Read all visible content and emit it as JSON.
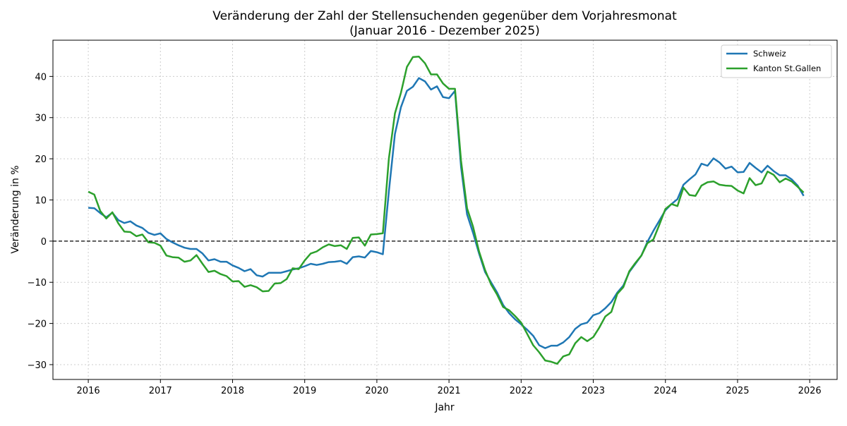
{
  "chart_data": {
    "type": "line",
    "title": "Veränderung der Zahl der Stellensuchenden gegenüber dem Vorjahresmonat",
    "subtitle": "(Januar 2016 - Dezember 2025)",
    "xlabel": "Jahr",
    "ylabel": "Veränderung in %",
    "xlim": [
      2015.51,
      2026.38
    ],
    "ylim": [
      -33.6,
      48.8
    ],
    "x_ticks": [
      "2016",
      "2017",
      "2018",
      "2019",
      "2020",
      "2021",
      "2022",
      "2023",
      "2024",
      "2025",
      "2026"
    ],
    "y_ticks": [
      "−30",
      "−20",
      "−10",
      "0",
      "10",
      "20",
      "30",
      "40"
    ],
    "y_tick_values": [
      -30,
      -20,
      -10,
      0,
      10,
      20,
      30,
      40
    ],
    "grid": true,
    "reference_line": 0,
    "legend": "top-right",
    "x_start": "2016-01",
    "x_frequency": "monthly",
    "series": [
      {
        "name": "Schweiz",
        "color": "#1f77b4",
        "values": [
          8.1,
          8.0,
          6.8,
          5.8,
          6.9,
          5.1,
          4.4,
          4.8,
          3.8,
          3.2,
          2.0,
          1.5,
          1.9,
          0.5,
          -0.3,
          -1.0,
          -1.6,
          -1.9,
          -1.9,
          -3.0,
          -4.7,
          -4.4,
          -5.0,
          -5.0,
          -5.9,
          -6.5,
          -7.3,
          -6.8,
          -8.3,
          -8.6,
          -7.7,
          -7.7,
          -7.7,
          -7.3,
          -6.9,
          -6.6,
          -6.1,
          -5.5,
          -5.8,
          -5.5,
          -5.1,
          -5.0,
          -4.8,
          -5.5,
          -3.9,
          -3.7,
          -4.0,
          -2.4,
          -2.7,
          -3.2,
          12.0,
          26.0,
          32.5,
          36.5,
          37.5,
          39.6,
          38.8,
          36.8,
          37.6,
          35.0,
          34.7,
          36.5,
          18.0,
          6.5,
          2.0,
          -3.0,
          -7.5,
          -10.0,
          -12.5,
          -15.5,
          -17.5,
          -19.0,
          -20.2,
          -21.5,
          -23.0,
          -25.3,
          -26.0,
          -25.4,
          -25.4,
          -24.6,
          -23.3,
          -21.3,
          -20.2,
          -19.8,
          -18.0,
          -17.5,
          -16.3,
          -14.8,
          -12.5,
          -10.8,
          -7.5,
          -5.5,
          -3.5,
          -0.2,
          2.5,
          5.0,
          7.5,
          9.0,
          10.2,
          13.7,
          15.0,
          16.2,
          18.8,
          18.3,
          20.1,
          19.1,
          17.6,
          18.1,
          16.7,
          16.8,
          19.0,
          17.8,
          16.7,
          18.3,
          17.0,
          16.0,
          16.0,
          15.0,
          13.5,
          11.0
        ]
      },
      {
        "name": "Kanton St.Gallen",
        "color": "#2ca02c",
        "values": [
          12.0,
          11.3,
          7.3,
          5.5,
          7.0,
          4.3,
          2.3,
          2.2,
          1.2,
          1.6,
          -0.3,
          -0.4,
          -1.1,
          -3.5,
          -3.9,
          -4.0,
          -5.0,
          -4.7,
          -3.4,
          -5.5,
          -7.5,
          -7.2,
          -8.0,
          -8.5,
          -9.8,
          -9.7,
          -11.1,
          -10.7,
          -11.2,
          -12.2,
          -12.1,
          -10.3,
          -10.2,
          -9.2,
          -6.6,
          -6.8,
          -4.7,
          -3.0,
          -2.5,
          -1.5,
          -0.8,
          -1.2,
          -1.0,
          -1.9,
          0.8,
          0.9,
          -1.1,
          1.6,
          1.7,
          1.9,
          20.0,
          31.0,
          36.0,
          42.3,
          44.7,
          44.8,
          43.2,
          40.5,
          40.5,
          38.3,
          37.0,
          37.0,
          19.5,
          8.0,
          3.5,
          -2.5,
          -7.0,
          -10.5,
          -13.0,
          -16.0,
          -16.8,
          -18.2,
          -19.8,
          -22.5,
          -25.3,
          -27.0,
          -29.0,
          -29.3,
          -29.8,
          -28.0,
          -27.5,
          -24.8,
          -23.3,
          -24.3,
          -23.3,
          -21.0,
          -18.3,
          -17.2,
          -12.8,
          -11.2,
          -7.3,
          -5.3,
          -3.5,
          -0.5,
          0.4,
          4.0,
          7.8,
          9.0,
          8.5,
          13.0,
          11.2,
          11.0,
          13.5,
          14.3,
          14.5,
          13.7,
          13.5,
          13.4,
          12.3,
          11.6,
          15.3,
          13.6,
          14.0,
          16.9,
          16.1,
          14.3,
          15.2,
          14.5,
          13.2,
          11.8
        ]
      }
    ]
  }
}
